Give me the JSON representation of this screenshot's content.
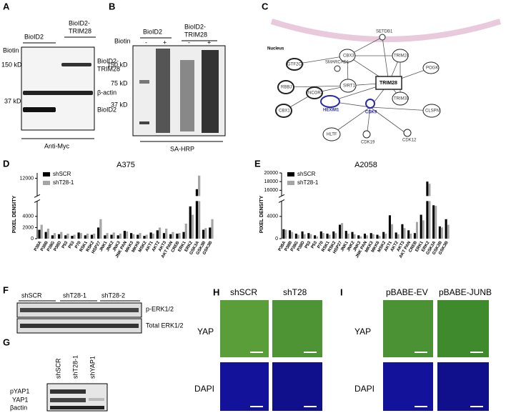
{
  "panel_a": {
    "letter": "A",
    "lane_1": "BioID2",
    "lane_2": [
      "BioID2-",
      "TRIM28"
    ],
    "treatment": "Biotin",
    "signs": [
      "-",
      "+",
      "-",
      "+"
    ],
    "markers": [
      "150 kD",
      "37 kD"
    ],
    "band_labels": [
      [
        "BioID2-",
        "TRIM28"
      ],
      "β-actin",
      "BioID2"
    ],
    "footer": "Anti-Myc"
  },
  "panel_b": {
    "letter": "B",
    "lane_1": "BioID2",
    "lane_2": [
      "BioID2-",
      "TRIM28"
    ],
    "treatment": "Biotin",
    "signs": [
      "-",
      "+",
      "-",
      "+"
    ],
    "markers": [
      "150 kD",
      "75 kD",
      "37 kD"
    ],
    "footer": "SA-HRP"
  },
  "network": {
    "letter": "C",
    "compartment": "Nucleus",
    "nodes": [
      "SETDB1",
      "SMARCAD1",
      "CBX3",
      "TRIM24",
      "POGK",
      "GTF2C4",
      "TRIM28",
      "RBBJ",
      "SIRT1",
      "NCOR2",
      "HEXIM1",
      "CDK9",
      "TRIM33",
      "CLSPN",
      "CBX1",
      "HLTF",
      "CDK19",
      "CDK12"
    ]
  },
  "panel_f": {
    "letter": "F",
    "lanes": [
      "shSCR",
      "shT28-1",
      "shT28-2"
    ],
    "band_labels": [
      "p-ERK1/2",
      "Total ERK1/2"
    ]
  },
  "panel_g": {
    "letter": "G",
    "lanes": [
      "shSCR",
      "shT28-1",
      "shYAP1"
    ],
    "band_labels": [
      "pYAP1",
      "YAP1",
      "βactin"
    ]
  },
  "panel_h": {
    "letter": "H",
    "columns": [
      "shSCR",
      "shT28"
    ],
    "rows": [
      "YAP",
      "DAPI"
    ]
  },
  "panel_i": {
    "letter": "I",
    "columns": [
      "pBABE-EV",
      "pBABE-JUNB"
    ],
    "rows": [
      "YAP",
      "DAPI"
    ]
  },
  "chart_data": [
    {
      "type": "bar",
      "panel": "D",
      "title": "A375",
      "y_label": "PIXEL DENSITY",
      "categories": [
        "P38A",
        "P38B",
        "P38G",
        "P38D",
        "P53",
        "P53",
        "P70",
        "RSK1",
        "RSK2",
        "HSP27",
        "JNK1",
        "JNK2",
        "JNK3",
        "JNK PAN",
        "MKK3",
        "MKK6",
        "MSK2",
        "AKT1",
        "AKT2",
        "AKT3",
        "AKT PAN",
        "CREB",
        "ERK1",
        "ERK2",
        "GSK3A",
        "GSK3B",
        "GSK3B"
      ],
      "series": [
        {
          "name": "shSCR",
          "color": "#000000",
          "values": [
            1600,
            1200,
            600,
            800,
            600,
            500,
            1100,
            600,
            700,
            2000,
            600,
            700,
            600,
            1400,
            1000,
            700,
            500,
            1100,
            1500,
            1000,
            800,
            900,
            1200,
            5800,
            10000,
            1600,
            2000
          ]
        },
        {
          "name": "shT28-1",
          "color": "#a6a6a6",
          "values": [
            2500,
            1800,
            1000,
            1200,
            900,
            700,
            1000,
            900,
            900,
            3500,
            1000,
            1100,
            900,
            1300,
            800,
            1000,
            700,
            900,
            2000,
            1800,
            1200,
            1000,
            2700,
            4300,
            12500,
            1900,
            3500
          ]
        }
      ],
      "ylim": [
        0,
        13000
      ],
      "ybreak": [
        6500,
        9000
      ],
      "yticks": [
        0,
        2000,
        4000,
        12000
      ],
      "grid": false,
      "legend": "upper left"
    },
    {
      "type": "bar",
      "panel": "E",
      "title": "A2058",
      "y_label": "PIXEL DENSITY",
      "categories": [
        "P38A",
        "P38B",
        "P38G",
        "P38D",
        "P53",
        "P53",
        "P70",
        "RSK1",
        "RSK2",
        "HSP27",
        "JNK1",
        "JNK2",
        "JNK3",
        "JNK PAN",
        "MKK3",
        "MKK6",
        "MSK2",
        "AKT1",
        "AKT2",
        "AKT3",
        "AKT PAN",
        "CREB",
        "ERK1",
        "ERK2",
        "GSK3A",
        "GSK3B",
        "GSK3B"
      ],
      "series": [
        {
          "name": "shSCR",
          "color": "#000000",
          "values": [
            1700,
            1500,
            900,
            1300,
            1000,
            600,
            1300,
            900,
            1300,
            2500,
            1400,
            1200,
            600,
            900,
            1000,
            700,
            1200,
            4200,
            1100,
            2600,
            1500,
            1000,
            4300,
            18000,
            6000,
            2200,
            3500
          ]
        },
        {
          "name": "shT28-1",
          "color": "#a6a6a6",
          "values": [
            1600,
            1200,
            700,
            800,
            800,
            400,
            1000,
            700,
            1000,
            2800,
            900,
            800,
            400,
            600,
            800,
            500,
            900,
            2600,
            800,
            1900,
            900,
            3000,
            3300,
            17500,
            5900,
            2000,
            2500
          ]
        }
      ],
      "ylim": [
        0,
        20000
      ],
      "ybreak": [
        6500,
        15000
      ],
      "yticks": [
        0,
        4000,
        16000,
        18000,
        20000
      ],
      "grid": false,
      "legend": "upper left"
    }
  ]
}
